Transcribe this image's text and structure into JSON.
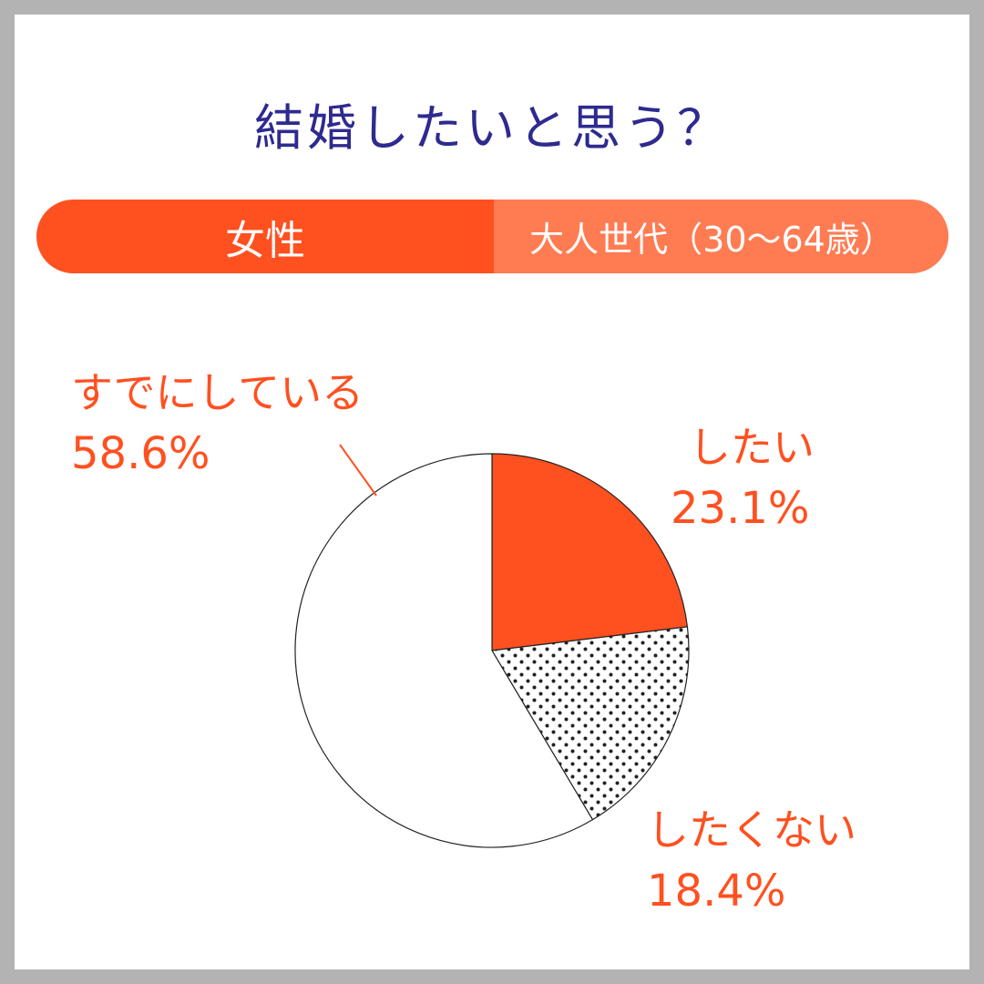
{
  "title": "結婚したいと思う？",
  "segment_bar": {
    "left_label": "女性",
    "right_label": "大人世代（30〜64歳）"
  },
  "colors": {
    "accent": "#ff5020",
    "accent_light": "#ff7b52",
    "title": "#2e2a8f"
  },
  "chart_data": {
    "type": "pie",
    "start": "12 o'clock, clockwise",
    "slices": [
      {
        "label": "したい",
        "value": 23.1,
        "value_label": "23.1%",
        "fill": "#ff5020"
      },
      {
        "label": "したくない",
        "value": 18.4,
        "value_label": "18.4%",
        "fill": "dots"
      },
      {
        "label": "すでにしている",
        "value": 58.6,
        "value_label": "58.6%",
        "fill": "#ffffff"
      }
    ]
  }
}
